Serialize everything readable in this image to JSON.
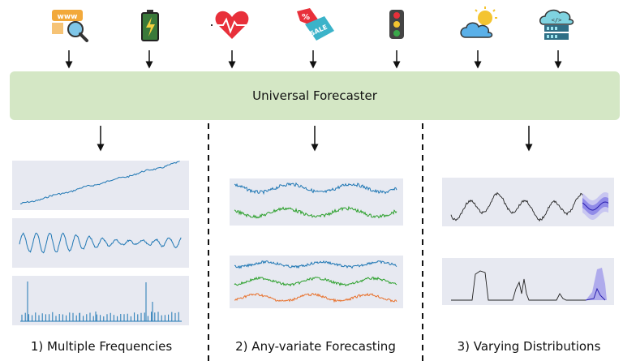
{
  "banner": {
    "label": "Universal Forecaster"
  },
  "icons": [
    {
      "name": "web-search-icon"
    },
    {
      "name": "battery-icon"
    },
    {
      "name": "heart-rate-icon"
    },
    {
      "name": "sale-tag-icon"
    },
    {
      "name": "traffic-light-icon"
    },
    {
      "name": "weather-icon"
    },
    {
      "name": "cloud-server-icon"
    }
  ],
  "sections": [
    {
      "label": "1) Multiple Frequencies"
    },
    {
      "label": "2) Any-variate Forecasting"
    },
    {
      "label": "3) Varying Distributions"
    }
  ],
  "colors": {
    "banner": "#d4e7c5",
    "plot_bg": "#e7e9f1",
    "series_blue": "#1f77b4",
    "series_green": "#2ca02c",
    "series_orange": "#e8702a",
    "series_black": "#222222",
    "forecast": "#4b3fd8"
  }
}
